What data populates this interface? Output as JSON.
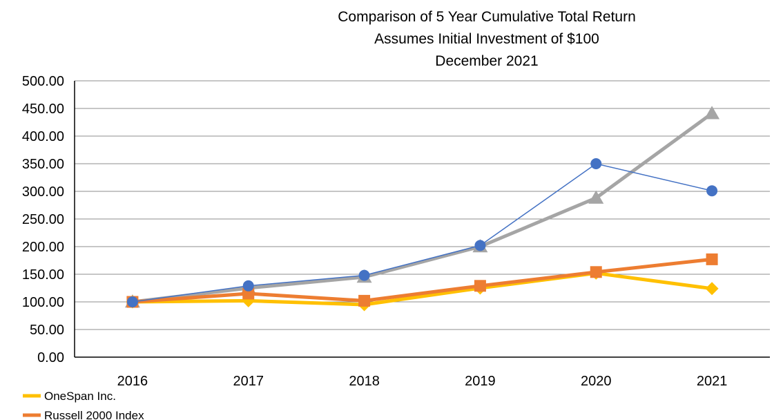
{
  "chart_data": {
    "type": "line",
    "title": [
      "Comparison of 5 Year Cumulative Total Return",
      "Assumes Initial Investment of $100",
      "December 2021"
    ],
    "xlabel": "",
    "ylabel": "",
    "categories": [
      "2016",
      "2017",
      "2018",
      "2019",
      "2020",
      "2021"
    ],
    "ylim": [
      0,
      500
    ],
    "yticks": [
      "0.00",
      "50.00",
      "100.00",
      "150.00",
      "200.00",
      "250.00",
      "300.00",
      "350.00",
      "400.00",
      "450.00",
      "500.00"
    ],
    "grid": true,
    "legend_placement": "bottom-left",
    "series": [
      {
        "name": "OneSpan Inc.",
        "color": "#FFC000",
        "marker": "diamond",
        "values": [
          100,
          102,
          95,
          125,
          152,
          124
        ]
      },
      {
        "name": "Russell 2000 Index",
        "color": "#ED7D31",
        "marker": "square",
        "values": [
          100,
          115,
          102,
          129,
          154,
          177
        ]
      },
      {
        "name": "",
        "color": "#A5A5A5",
        "marker": "triangle",
        "values": [
          100,
          125,
          145,
          200,
          288,
          441
        ]
      },
      {
        "name": "",
        "color": "#4472C4",
        "marker": "circle",
        "values": [
          100,
          129,
          148,
          202,
          350,
          301
        ]
      }
    ]
  }
}
